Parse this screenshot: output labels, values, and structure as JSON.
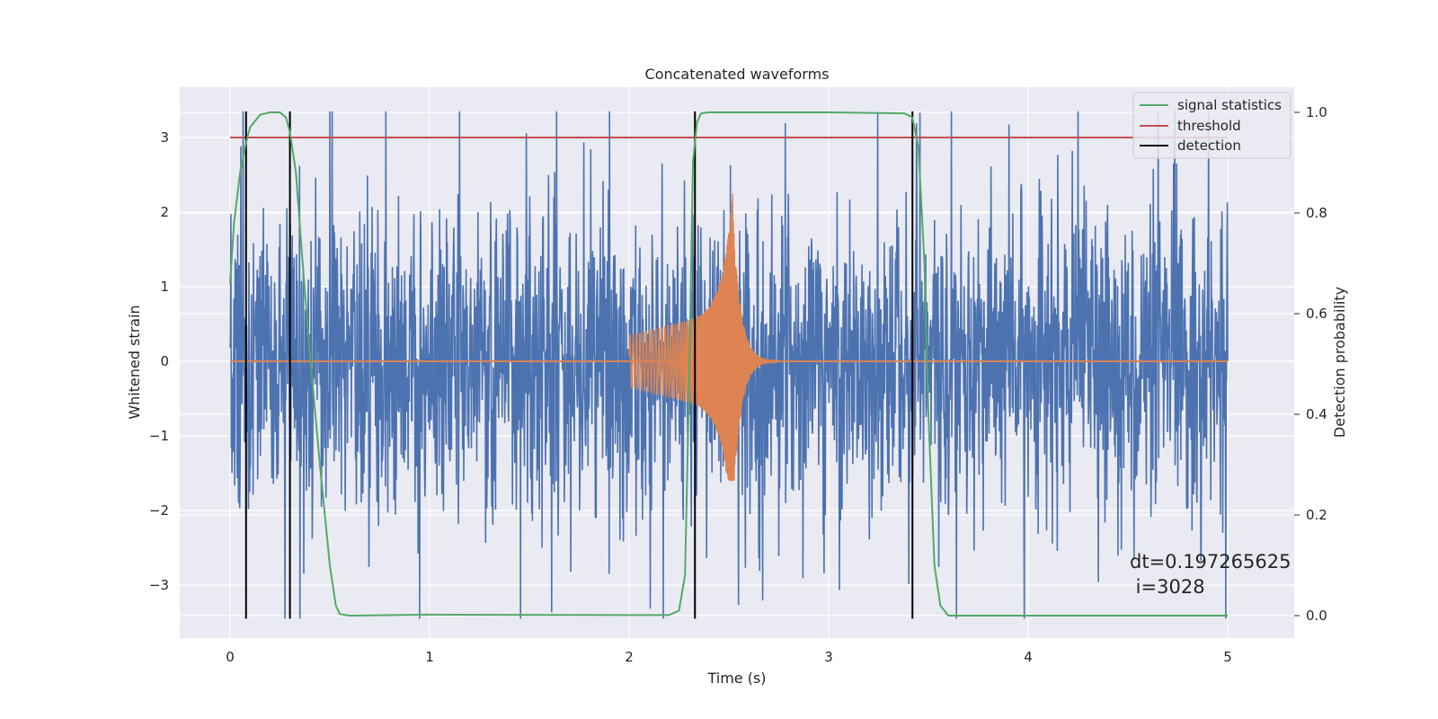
{
  "chart_data": {
    "type": "line",
    "title": "Concatenated waveforms",
    "xlabel": "Time (s)",
    "ylabel": "Whitened strain",
    "y2label": "Detection probability",
    "xlim": [
      -0.25,
      5.35
    ],
    "ylim": [
      -3.75,
      3.5
    ],
    "y2lim": [
      -0.05,
      1.05
    ],
    "x_ticks": [
      0,
      1,
      2,
      3,
      4,
      5
    ],
    "y_ticks": [
      -3,
      -2,
      -1,
      0,
      1,
      2,
      3
    ],
    "y2_ticks": [
      0.0,
      0.2,
      0.4,
      0.6,
      0.8,
      1.0
    ],
    "x_tick_labels": [
      "0",
      "1",
      "2",
      "3",
      "4",
      "5"
    ],
    "y_tick_labels": [
      "−3",
      "−2",
      "−1",
      "0",
      "1",
      "2",
      "3"
    ],
    "y2_tick_labels": [
      "0.0",
      "0.2",
      "0.4",
      "0.6",
      "0.8",
      "1.0"
    ],
    "grid": true,
    "legend_position": "top-right",
    "colors": {
      "strain": "#4c72b0",
      "template": "#dd8452",
      "signal_statistics": "#55a868",
      "threshold": "#c44e52",
      "detection": "#000000",
      "background": "#eaeaf2",
      "grid": "#ffffff"
    },
    "series": [
      {
        "name": "signal statistics",
        "axis": "right",
        "x": [
          0.0,
          0.02,
          0.05,
          0.08,
          0.1,
          0.15,
          0.2,
          0.25,
          0.28,
          0.3,
          0.33,
          0.36,
          0.4,
          0.45,
          0.5,
          0.53,
          0.55,
          0.6,
          1.0,
          2.0,
          2.2,
          2.25,
          2.28,
          2.3,
          2.32,
          2.34,
          2.36,
          2.4,
          3.0,
          3.38,
          3.42,
          3.45,
          3.48,
          3.5,
          3.53,
          3.56,
          3.6,
          4.0,
          5.0
        ],
        "values": [
          0.66,
          0.78,
          0.88,
          0.94,
          0.97,
          0.995,
          1.0,
          1.0,
          0.99,
          0.96,
          0.88,
          0.72,
          0.52,
          0.3,
          0.1,
          0.02,
          0.003,
          0.0,
          0.002,
          0.001,
          0.001,
          0.01,
          0.08,
          0.45,
          0.9,
          0.98,
          0.998,
          1.0,
          1.0,
          0.998,
          0.99,
          0.93,
          0.7,
          0.4,
          0.1,
          0.02,
          0.0,
          0.0,
          0.0
        ]
      },
      {
        "name": "threshold",
        "axis": "left",
        "x": [
          0.0,
          5.0
        ],
        "values": [
          3.0,
          3.0
        ]
      },
      {
        "name": "detection",
        "axis": "left",
        "type": "vlines",
        "x": [
          0.08,
          0.3,
          2.33,
          3.42
        ],
        "ymin": -3.45,
        "ymax": 3.35
      }
    ],
    "strain_noise": {
      "x_range": [
        0.0,
        5.0
      ],
      "envelope": 2.6
    },
    "template_chirp": {
      "x_start": 2.0,
      "x_merger": 2.52,
      "x_end": 2.75,
      "peak": 2.45,
      "trough": -1.6
    },
    "annotation": {
      "line1": "dt=0.197265625",
      "line2": " i=3028",
      "x": 4.5,
      "y": -2.65
    }
  }
}
